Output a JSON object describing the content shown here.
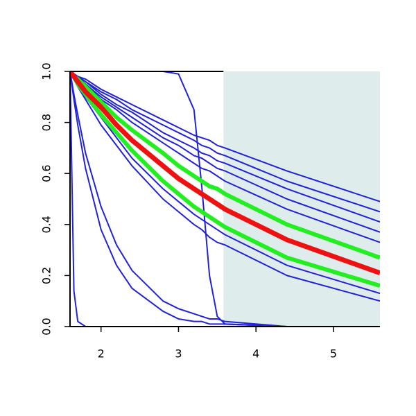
{
  "chart_data": {
    "type": "line",
    "x": [
      1.6,
      1.65,
      1.7,
      1.8,
      2.0,
      2.2,
      2.4,
      2.8,
      3.0,
      3.2,
      3.3,
      3.4,
      3.5,
      3.6,
      4.4,
      5.6
    ],
    "xlim": [
      1.6,
      5.6
    ],
    "xticks": [
      2,
      3,
      4,
      5
    ],
    "ylim": [
      0,
      1
    ],
    "yticks": [
      {
        "value": 0,
        "label": "0.0"
      },
      0.2,
      0.4,
      0.6,
      0.8,
      {
        "value": 1,
        "label": "1.0"
      }
    ],
    "shaded_region": {
      "x": [
        3.58,
        5.6
      ],
      "color": "#deecec"
    },
    "series": [
      {
        "color": "#2020dd",
        "line_width": 2,
        "values": [
          1,
          0.99,
          0.98,
          0.97,
          0.93,
          0.9,
          0.87,
          0.81,
          0.78,
          0.75,
          0.74,
          0.73,
          0.71,
          0.7,
          0.61,
          0.49
        ]
      },
      {
        "color": "#2020dd",
        "line_width": 2,
        "values": [
          1,
          0.99,
          0.98,
          0.96,
          0.92,
          0.89,
          0.85,
          0.79,
          0.76,
          0.73,
          0.71,
          0.7,
          0.68,
          0.67,
          0.57,
          0.45
        ]
      },
      {
        "color": "#2020dd",
        "line_width": 2,
        "values": [
          1,
          0.99,
          0.98,
          0.96,
          0.91,
          0.87,
          0.84,
          0.76,
          0.73,
          0.7,
          0.68,
          0.67,
          0.65,
          0.64,
          0.54,
          0.41
        ]
      },
      {
        "color": "#2020dd",
        "line_width": 2,
        "values": [
          1,
          0.99,
          0.98,
          0.95,
          0.9,
          0.86,
          0.82,
          0.74,
          0.71,
          0.67,
          0.66,
          0.64,
          0.62,
          0.61,
          0.5,
          0.37
        ]
      },
      {
        "color": "#2020dd",
        "line_width": 2,
        "values": [
          1,
          0.99,
          0.97,
          0.95,
          0.89,
          0.85,
          0.8,
          0.72,
          0.68,
          0.64,
          0.62,
          0.61,
          0.59,
          0.57,
          0.46,
          0.33
        ]
      },
      {
        "color": "#2020dd",
        "line_width": 2,
        "values": [
          1,
          0.97,
          0.95,
          0.9,
          0.82,
          0.74,
          0.66,
          0.54,
          0.49,
          0.44,
          0.42,
          0.4,
          0.38,
          0.36,
          0.24,
          0.13
        ]
      },
      {
        "color": "#2020dd",
        "line_width": 2,
        "values": [
          1,
          0.97,
          0.94,
          0.89,
          0.79,
          0.71,
          0.63,
          0.5,
          0.45,
          0.4,
          0.38,
          0.35,
          0.33,
          0.32,
          0.2,
          0.1
        ]
      },
      {
        "color": "#2020dd",
        "line_width": 2,
        "values": [
          1,
          0.91,
          0.83,
          0.68,
          0.47,
          0.32,
          0.22,
          0.1,
          0.07,
          0.05,
          0.04,
          0.03,
          0.03,
          0.02,
          0,
          0
        ]
      },
      {
        "color": "#2020dd",
        "line_width": 2,
        "values": [
          1,
          0.89,
          0.79,
          0.62,
          0.38,
          0.24,
          0.15,
          0.06,
          0.03,
          0.02,
          0.02,
          0.01,
          0.01,
          0.01,
          0,
          0
        ]
      },
      {
        "color": "#2020dd",
        "line_width": 2,
        "values": [
          1,
          0.14,
          0.02,
          0,
          0,
          0,
          0,
          0,
          0,
          0,
          0,
          0,
          0,
          0,
          0,
          0
        ]
      },
      {
        "color": "#2020dd",
        "line_width": 2,
        "values": [
          1,
          1,
          1,
          1,
          1,
          1,
          1,
          1,
          0.99,
          0.85,
          0.55,
          0.2,
          0.04,
          0.01,
          0,
          0
        ]
      },
      {
        "color": "#22ee22",
        "line_width": 6,
        "values": [
          1,
          0.98,
          0.97,
          0.94,
          0.88,
          0.82,
          0.77,
          0.68,
          0.63,
          0.59,
          0.57,
          0.55,
          0.54,
          0.52,
          0.4,
          0.27
        ]
      },
      {
        "color": "#22ee22",
        "line_width": 6,
        "values": [
          1,
          0.98,
          0.95,
          0.91,
          0.83,
          0.76,
          0.69,
          0.57,
          0.52,
          0.47,
          0.45,
          0.43,
          0.41,
          0.39,
          0.27,
          0.16
        ]
      },
      {
        "color": "#ee1111",
        "line_width": 7,
        "values": [
          1,
          0.98,
          0.96,
          0.92,
          0.86,
          0.79,
          0.73,
          0.63,
          0.58,
          0.54,
          0.52,
          0.5,
          0.48,
          0.46,
          0.34,
          0.21
        ]
      }
    ]
  }
}
